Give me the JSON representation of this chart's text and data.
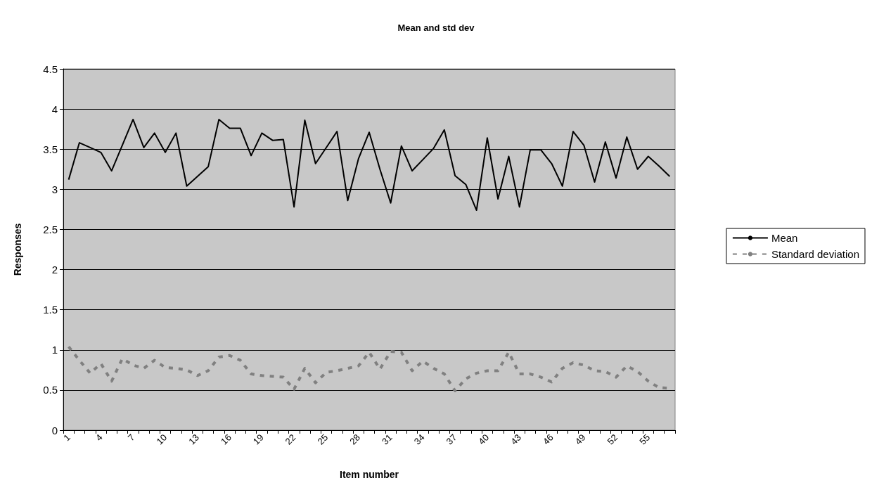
{
  "chart_data": {
    "type": "line",
    "title": "Mean and std dev",
    "xlabel": "Item number",
    "ylabel": "Responses",
    "categories": [
      "1",
      null,
      null,
      "4",
      null,
      null,
      "7",
      null,
      null,
      "10",
      null,
      null,
      "13",
      null,
      null,
      "16",
      null,
      null,
      "19",
      null,
      null,
      "22",
      null,
      null,
      "25",
      null,
      null,
      "28",
      null,
      null,
      "31",
      null,
      null,
      "34",
      null,
      null,
      "37",
      null,
      null,
      "40",
      null,
      null,
      "43",
      null,
      null,
      "46",
      null,
      null,
      "49",
      null,
      null,
      "52",
      null,
      null,
      "55",
      null,
      null
    ],
    "series": [
      {
        "name": "Mean",
        "color": "#000000",
        "line_style": "solid",
        "values": [
          3.12,
          3.58,
          3.52,
          3.46,
          3.23,
          3.55,
          3.87,
          3.52,
          3.7,
          3.46,
          3.7,
          3.04,
          3.16,
          3.28,
          3.87,
          3.76,
          3.76,
          3.42,
          3.7,
          3.61,
          3.62,
          2.78,
          3.86,
          3.32,
          3.52,
          3.72,
          2.86,
          3.38,
          3.71,
          3.25,
          2.83,
          3.54,
          3.23,
          3.37,
          3.51,
          3.74,
          3.17,
          3.06,
          2.74,
          3.64,
          2.88,
          3.41,
          2.78,
          3.49,
          3.49,
          3.32,
          3.04,
          3.72,
          3.55,
          3.09,
          3.59,
          3.14,
          3.65,
          3.25,
          3.41,
          3.29,
          3.16
        ]
      },
      {
        "name": "Standard deviation",
        "color": "#808080",
        "line_style": "dashed",
        "values": [
          1.04,
          0.87,
          0.71,
          0.83,
          0.61,
          0.89,
          0.81,
          0.77,
          0.87,
          0.78,
          0.77,
          0.75,
          0.68,
          0.74,
          0.91,
          0.93,
          0.87,
          0.7,
          0.68,
          0.67,
          0.66,
          0.51,
          0.77,
          0.59,
          0.72,
          0.74,
          0.77,
          0.8,
          0.97,
          0.76,
          0.98,
          0.97,
          0.74,
          0.86,
          0.77,
          0.7,
          0.49,
          0.64,
          0.71,
          0.74,
          0.74,
          0.97,
          0.7,
          0.7,
          0.66,
          0.6,
          0.77,
          0.84,
          0.81,
          0.74,
          0.73,
          0.66,
          0.8,
          0.73,
          0.61,
          0.53,
          0.52
        ]
      }
    ],
    "ylim": [
      0,
      4.5
    ],
    "yticks": [
      0,
      0.5,
      1,
      1.5,
      2,
      2.5,
      3,
      3.5,
      4,
      4.5
    ],
    "grid": "y",
    "legend": "right",
    "marker": "none"
  }
}
